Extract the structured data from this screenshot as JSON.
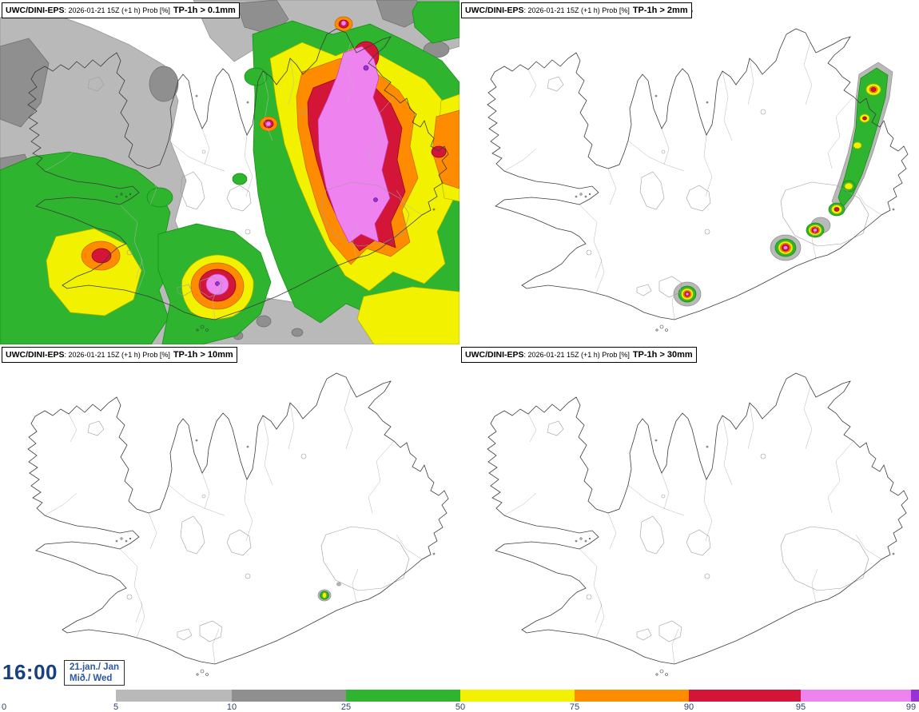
{
  "panels": [
    {
      "model": "UWC/DINI-EPS",
      "meta": ": 2026-01-21 15Z (+1 h) Prob [%]",
      "threshold": "TP-1h > 0.1mm"
    },
    {
      "model": "UWC/DINI-EPS",
      "meta": ": 2026-01-21 15Z (+1 h) Prob [%]",
      "threshold": "TP-1h > 2mm"
    },
    {
      "model": "UWC/DINI-EPS",
      "meta": ": 2026-01-21 15Z (+1 h) Prob [%]",
      "threshold": "TP-1h > 10mm"
    },
    {
      "model": "UWC/DINI-EPS",
      "meta": ": 2026-01-21 15Z (+1 h) Prob [%]",
      "threshold": "TP-1h > 30mm"
    }
  ],
  "clock": {
    "time": "16:00",
    "date_line1": "21.jan./ Jan",
    "date_line2": "Mið./ Wed"
  },
  "colorbar": {
    "labels": [
      "0",
      "5",
      "10",
      "25",
      "50",
      "75",
      "90",
      "95",
      "99"
    ],
    "colors": [
      "#b9b9b9",
      "#8f8f8f",
      "#2eb42e",
      "#f2f200",
      "#ff8c00",
      "#d31638",
      "#ee82ee",
      "#9a30d8"
    ]
  }
}
